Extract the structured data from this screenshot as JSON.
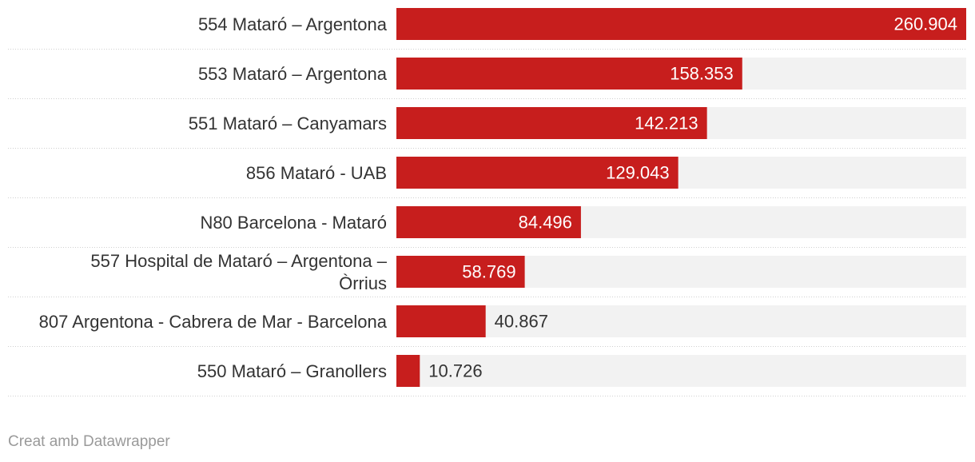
{
  "chart_data": {
    "type": "bar",
    "orientation": "horizontal",
    "categories": [
      [
        "554 Mataró – Argentona"
      ],
      [
        "553 Mataró – Argentona"
      ],
      [
        "551 Mataró – Canyamars"
      ],
      [
        "856 Mataró - UAB"
      ],
      [
        "N80 Barcelona - Mataró"
      ],
      [
        "557 Hospital de Mataró – Argentona –",
        "Òrrius"
      ],
      [
        "807 Argentona - Cabrera de Mar - Barcelona"
      ],
      [
        "550 Mataró – Granollers"
      ]
    ],
    "values": [
      260904,
      158353,
      142213,
      129043,
      84496,
      58769,
      40867,
      10726
    ],
    "value_labels": [
      "260.904",
      "158.353",
      "142.213",
      "129.043",
      "84.496",
      "58.769",
      "40.867",
      "10.726"
    ],
    "xlim": [
      0,
      260904
    ],
    "grid": false,
    "bar_color": "#c71e1d",
    "track_color": "#f2f2f2"
  },
  "credit": "Creat amb Datawrapper"
}
